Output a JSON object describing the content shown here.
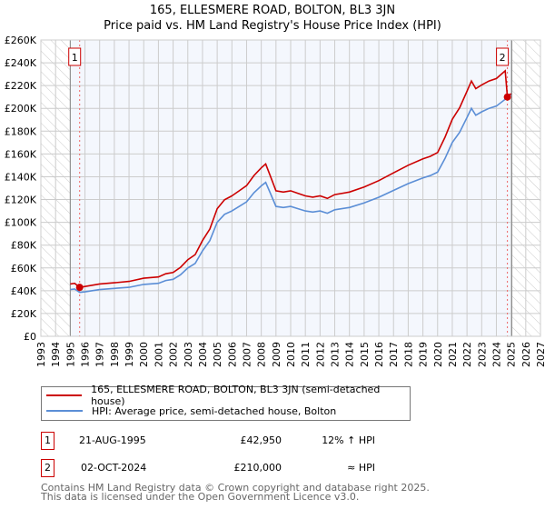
{
  "chart_data": {
    "type": "line",
    "title": "165, ELLESMERE ROAD, BOLTON, BL3 3JN",
    "subtitle": "Price paid vs. HM Land Registry's House Price Index (HPI)",
    "xlim": [
      1993,
      2027
    ],
    "ylim": [
      0,
      260000
    ],
    "y_ticks": [
      0,
      20000,
      40000,
      60000,
      80000,
      100000,
      120000,
      140000,
      160000,
      180000,
      200000,
      220000,
      240000,
      260000
    ],
    "y_tick_labels": [
      "£0",
      "£20K",
      "£40K",
      "£60K",
      "£80K",
      "£100K",
      "£120K",
      "£140K",
      "£160K",
      "£180K",
      "£200K",
      "£220K",
      "£240K",
      "£260K"
    ],
    "x_ticks": [
      "1993",
      "1994",
      "1995",
      "1996",
      "1997",
      "1998",
      "1999",
      "2000",
      "2001",
      "2002",
      "2003",
      "2004",
      "2005",
      "2006",
      "2007",
      "2008",
      "2009",
      "2010",
      "2011",
      "2012",
      "2013",
      "2014",
      "2015",
      "2016",
      "2017",
      "2018",
      "2019",
      "2020",
      "2021",
      "2022",
      "2023",
      "2024",
      "2025",
      "2026",
      "2027"
    ],
    "grid": true,
    "hatched_ranges": [
      [
        1993,
        1995
      ],
      [
        2025.05,
        2027
      ]
    ],
    "colors": {
      "property": "#cc0000",
      "hpi": "#5b8ed6",
      "plot_bg": "#f4f7fd",
      "grid": "#cccccc"
    },
    "series": [
      {
        "name": "165, ELLESMERE ROAD, BOLTON, BL3 3JN (semi-detached house)",
        "color": "#cc0000",
        "x": [
          1995.0,
          1995.3,
          1995.64,
          1996,
          1997,
          1998,
          1999,
          2000,
          2001,
          2001.5,
          2002,
          2002.5,
          2003,
          2003.5,
          2004,
          2004.5,
          2005,
          2005.5,
          2006,
          2006.5,
          2007,
          2007.5,
          2008,
          2008.3,
          2008.6,
          2009,
          2009.5,
          2010,
          2010.5,
          2011,
          2011.5,
          2012,
          2012.5,
          2013,
          2014,
          2015,
          2016,
          2017,
          2018,
          2019,
          2019.5,
          2020,
          2020.5,
          2021,
          2021.5,
          2022,
          2022.3,
          2022.6,
          2023,
          2023.5,
          2024,
          2024.6,
          2024.75,
          2025.0
        ],
        "y": [
          45900,
          46500,
          42950,
          43700,
          45900,
          47000,
          48200,
          51000,
          52100,
          54900,
          56000,
          60500,
          67200,
          71700,
          84000,
          94100,
          112000,
          119800,
          123200,
          127700,
          132200,
          141100,
          147800,
          151200,
          141100,
          127700,
          126600,
          127700,
          125400,
          123200,
          122100,
          123200,
          121000,
          124300,
          126600,
          131000,
          136600,
          143400,
          150100,
          155700,
          157900,
          161300,
          174700,
          190400,
          200500,
          215000,
          224000,
          217300,
          220600,
          224000,
          226200,
          233000,
          210000,
          213000
        ]
      },
      {
        "name": "HPI: Average price, semi-detached house, Bolton",
        "color": "#5b8ed6",
        "x": [
          1995.0,
          1995.3,
          1995.64,
          1996,
          1997,
          1998,
          1999,
          2000,
          2001,
          2001.5,
          2002,
          2002.5,
          2003,
          2003.5,
          2004,
          2004.5,
          2005,
          2005.5,
          2006,
          2006.5,
          2007,
          2007.5,
          2008,
          2008.3,
          2008.6,
          2009,
          2009.5,
          2010,
          2010.5,
          2011,
          2011.5,
          2012,
          2012.5,
          2013,
          2014,
          2015,
          2016,
          2017,
          2018,
          2019,
          2019.5,
          2020,
          2020.5,
          2021,
          2021.5,
          2022,
          2022.3,
          2022.6,
          2023,
          2023.5,
          2024,
          2024.6,
          2024.75,
          2025.0
        ],
        "y": [
          41000,
          41500,
          38500,
          39000,
          41000,
          42000,
          43000,
          45500,
          46500,
          49000,
          50000,
          54000,
          60000,
          64000,
          75000,
          84000,
          100000,
          107000,
          110000,
          114000,
          118000,
          126000,
          132000,
          135000,
          126000,
          114000,
          113000,
          114000,
          112000,
          110000,
          109000,
          110000,
          108000,
          111000,
          113000,
          117000,
          122000,
          128000,
          134000,
          139000,
          141000,
          144000,
          156000,
          170000,
          179000,
          192000,
          200000,
          194000,
          197000,
          200000,
          202000,
          208000,
          210000,
          212000
        ]
      }
    ],
    "annotations": [
      {
        "label": "1",
        "x": 1995.64,
        "y": 42950
      },
      {
        "label": "2",
        "x": 2024.75,
        "y": 210000
      }
    ],
    "legend_position": "below"
  },
  "legend": {
    "items": [
      "165, ELLESMERE ROAD, BOLTON, BL3 3JN (semi-detached house)",
      "HPI: Average price, semi-detached house, Bolton"
    ]
  },
  "sales": [
    {
      "num": "1",
      "date": "21-AUG-1995",
      "price": "£42,950",
      "hpi": "12% ↑ HPI"
    },
    {
      "num": "2",
      "date": "02-OCT-2024",
      "price": "£210,000",
      "hpi": "≈ HPI"
    }
  ],
  "footer": {
    "line1": "Contains HM Land Registry data © Crown copyright and database right 2025.",
    "line2": "This data is licensed under the Open Government Licence v3.0."
  }
}
